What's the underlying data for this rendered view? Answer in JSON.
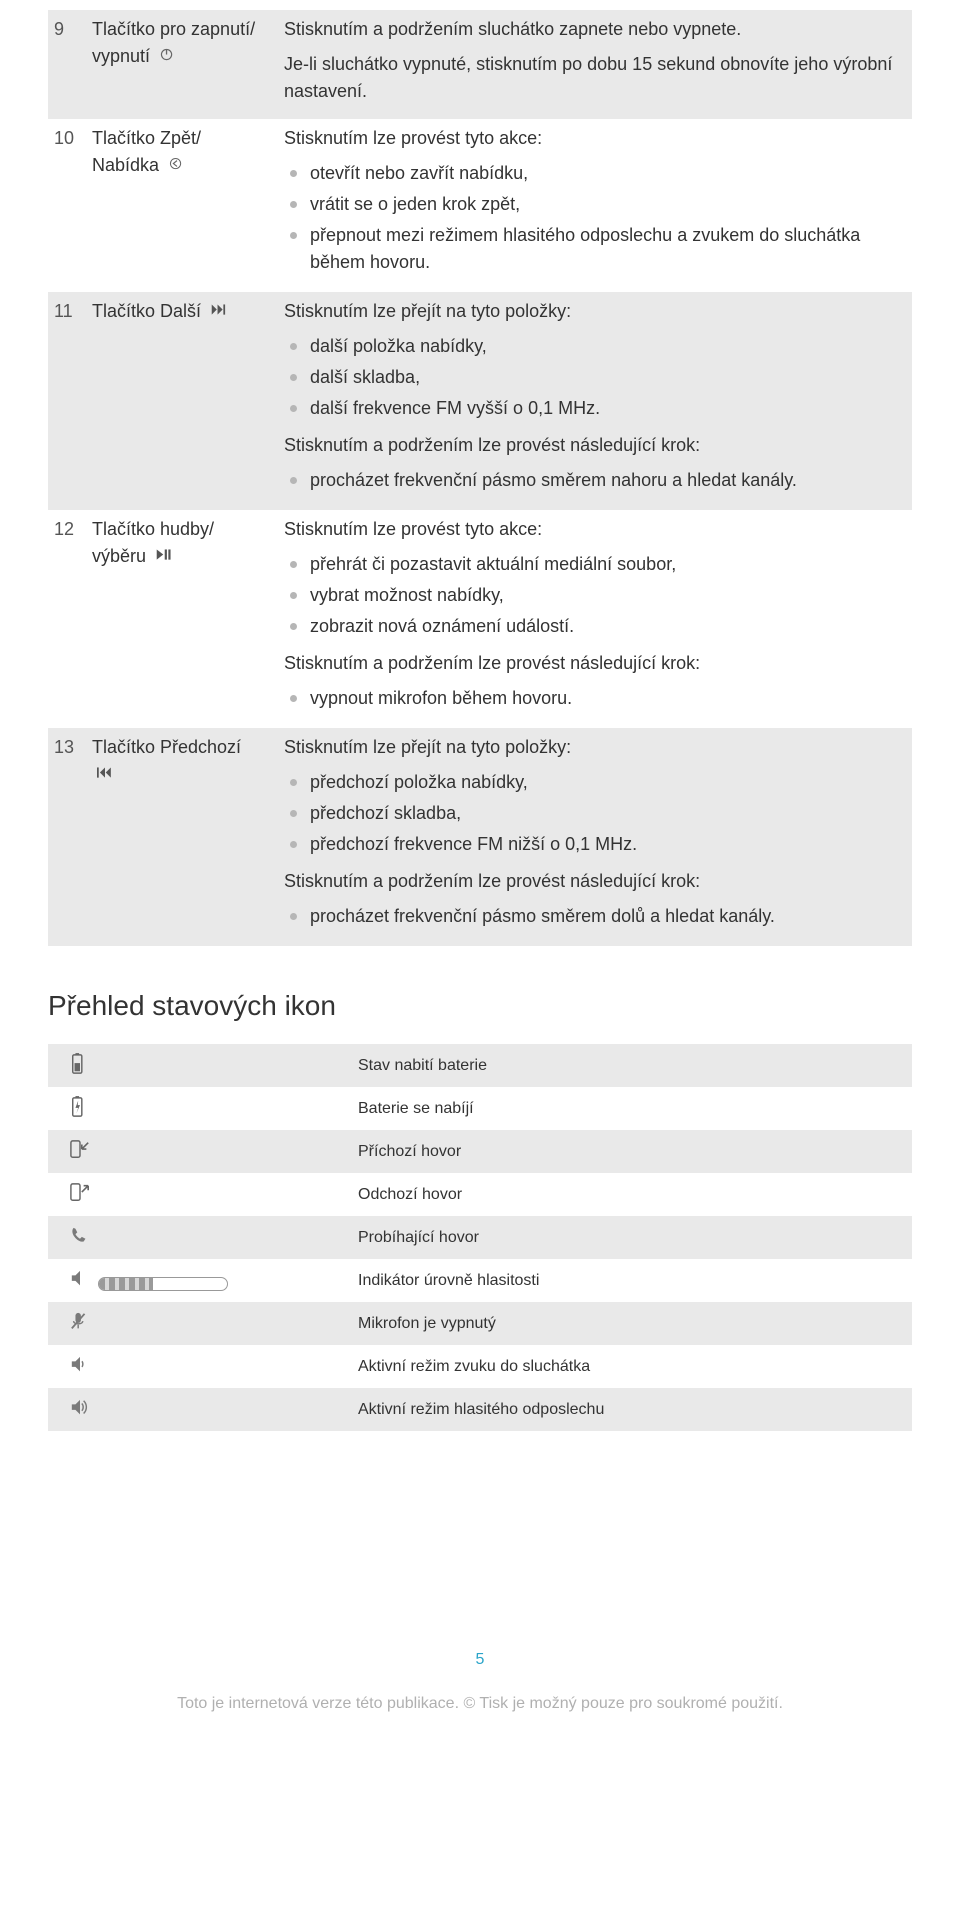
{
  "colors": {
    "stripe": "#e9e9e9",
    "white": "#ffffff",
    "text": "#333333",
    "bullet": "#b6b6b6",
    "icon": "#7a7a7a",
    "pagenum": "#2aa4c9",
    "footer": "#b0b0b0"
  },
  "rows": [
    {
      "num": "9",
      "label_l1": "Tlačítko pro zapnutí/",
      "label_l2": "vypnutí",
      "label_icon": "power-icon",
      "p1": "Stisknutím a podržením sluchátko zapnete nebo vypnete.",
      "p2": "Je-li sluchátko vypnuté, stisknutím po dobu 15 sekund obnovíte jeho výrobní nastavení."
    },
    {
      "num": "10",
      "label_l1": "Tlačítko Zpět/",
      "label_l2": "Nabídka",
      "label_icon": "back-icon",
      "p1": "Stisknutím lze provést tyto akce:",
      "bullets1": [
        "otevřít nebo zavřít nabídku,",
        "vrátit se o jeden krok zpět,",
        "přepnout mezi režimem hlasitého odposlechu a zvukem do sluchátka během hovoru."
      ]
    },
    {
      "num": "11",
      "label_l1": "Tlačítko Další",
      "label_icon": "next-icon",
      "p1": "Stisknutím lze přejít na tyto položky:",
      "bullets1": [
        "další položka nabídky,",
        "další skladba,",
        "další frekvence FM vyšší o 0,1 MHz."
      ],
      "p2": "Stisknutím a podržením lze provést následující krok:",
      "bullets2": [
        "procházet frekvenční pásmo směrem nahoru a hledat kanály."
      ]
    },
    {
      "num": "12",
      "label_l1": "Tlačítko hudby/",
      "label_l2": "výběru",
      "label_icon": "play-pause-icon",
      "p1": "Stisknutím lze provést tyto akce:",
      "bullets1": [
        "přehrát či pozastavit aktuální mediální soubor,",
        "vybrat možnost nabídky,",
        "zobrazit nová oznámení událostí."
      ],
      "p2": "Stisknutím a podržením lze provést následující krok:",
      "bullets2": [
        "vypnout mikrofon během hovoru."
      ]
    },
    {
      "num": "13",
      "label_l1": "Tlačítko Předchozí",
      "label_l2_icon": "prev-icon",
      "p1": "Stisknutím lze přejít na tyto položky:",
      "bullets1": [
        "předchozí položka nabídky,",
        "předchozí skladba,",
        "předchozí frekvence FM nižší o 0,1 MHz."
      ],
      "p2": "Stisknutím a podržením lze provést následující krok:",
      "bullets2": [
        "procházet frekvenční pásmo směrem dolů a hledat kanály."
      ]
    }
  ],
  "section_title": "Přehled stavových ikon",
  "status_icons": [
    {
      "icon": "battery-icon",
      "label": "Stav nabití baterie"
    },
    {
      "icon": "battery-charging-icon",
      "label": "Baterie se nabíjí"
    },
    {
      "icon": "call-in-icon",
      "label": "Příchozí hovor"
    },
    {
      "icon": "call-out-icon",
      "label": "Odchozí hovor"
    },
    {
      "icon": "call-active-icon",
      "label": "Probíhající hovor"
    },
    {
      "icon": "volume-icon",
      "label": "Indikátor úrovně hlasitosti",
      "volbar": true
    },
    {
      "icon": "mic-off-icon",
      "label": "Mikrofon je vypnutý"
    },
    {
      "icon": "speaker-ear-icon",
      "label": "Aktivní režim zvuku do sluchátka"
    },
    {
      "icon": "speaker-loud-icon",
      "label": "Aktivní režim hlasitého odposlechu"
    }
  ],
  "pagenum": "5",
  "footer": "Toto je internetová verze této publikace. © Tisk je možný pouze pro soukromé použití."
}
